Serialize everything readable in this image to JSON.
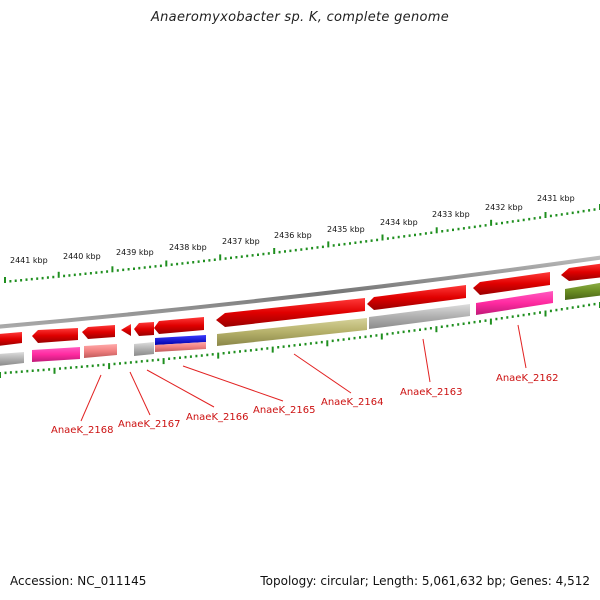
{
  "title": "Anaeromyxobacter sp. K, complete genome",
  "footer": {
    "accession": "Accession: NC_011145",
    "summary": "Topology: circular; Length: 5,061,632 bp; Genes: 4,512"
  },
  "kbp_labels": [
    "2441 kbp",
    "2440 kbp",
    "2439 kbp",
    "2438 kbp",
    "2437 kbp",
    "2436 kbp",
    "2435 kbp",
    "2434 kbp",
    "2433 kbp",
    "2432 kbp",
    "2431 kbp"
  ],
  "gene_labels": [
    "AnaeK_2168",
    "AnaeK_2167",
    "AnaeK_2166",
    "AnaeK_2165",
    "AnaeK_2164",
    "AnaeK_2163",
    "AnaeK_2162"
  ],
  "colors": {
    "cds": "#e00000",
    "rna_gray": "#aaaaaa",
    "pink": "#ff2aa0",
    "salmon": "#f08080",
    "blue": "#0000dd",
    "olive": "#b5b06a",
    "dark_olive": "#6b8e23",
    "tick": "#1f8f1f",
    "leader": "#e22222",
    "backbone": "#888888"
  }
}
